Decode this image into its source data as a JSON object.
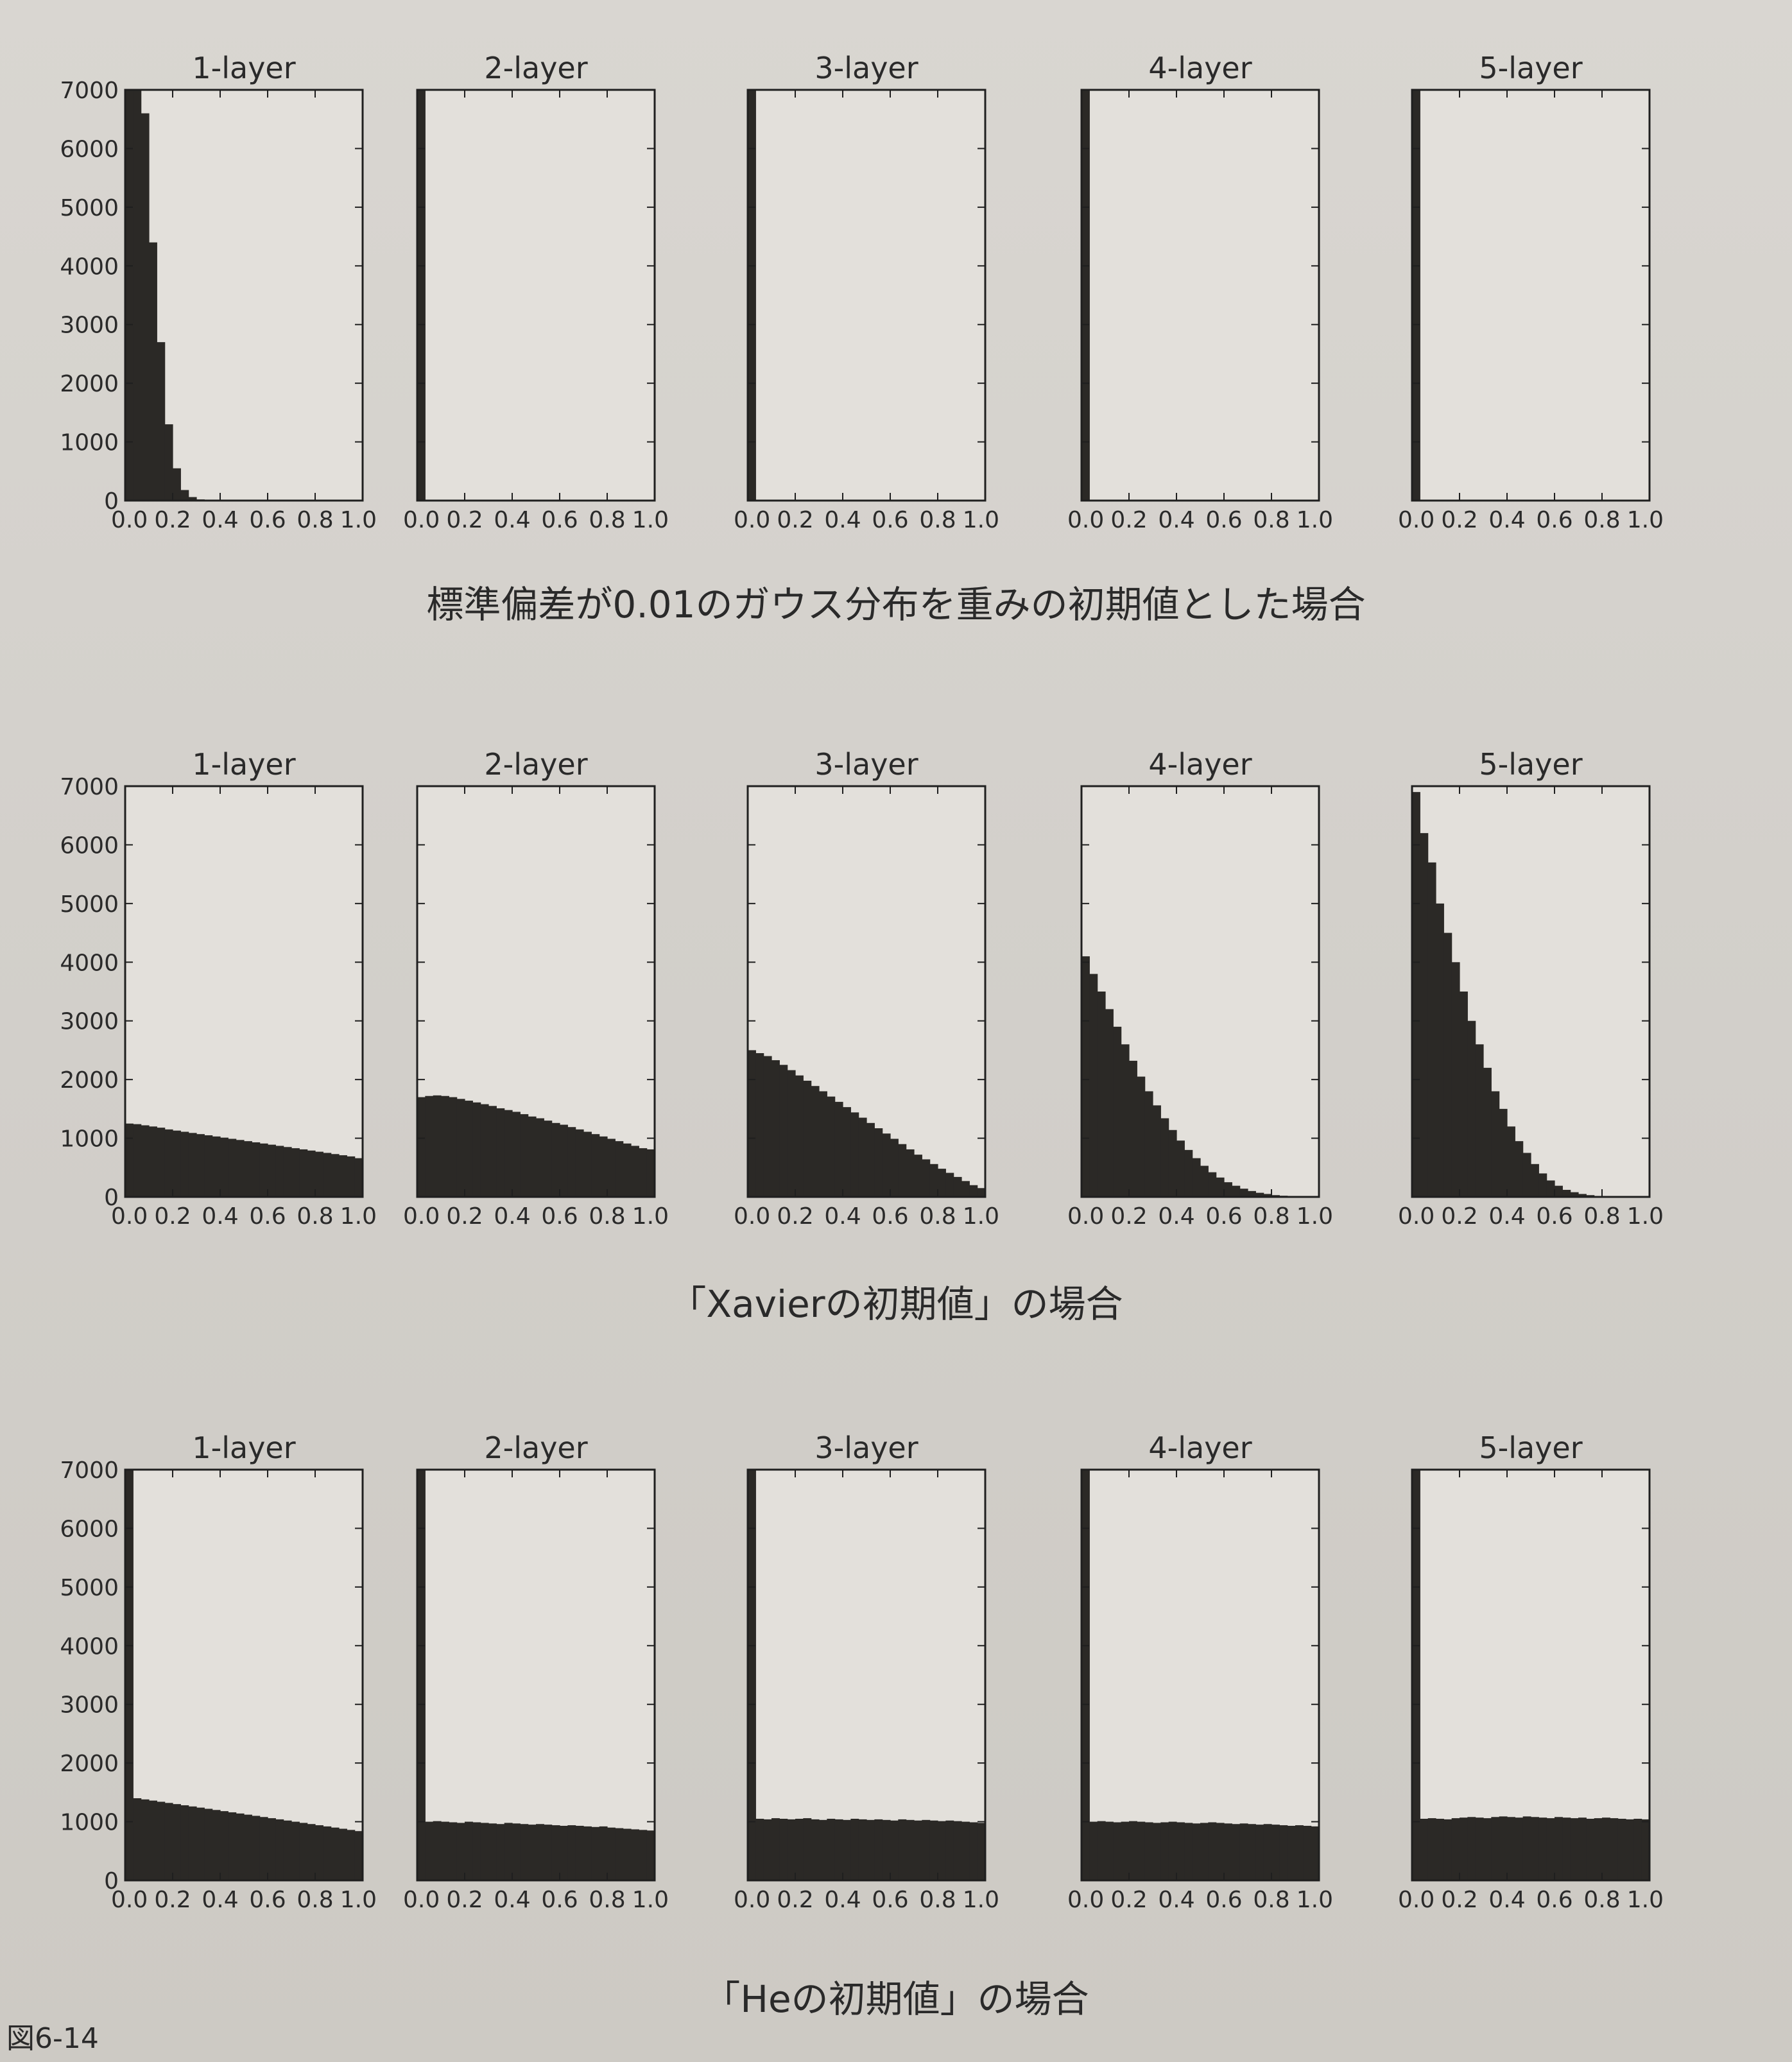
{
  "figure": {
    "number_label": "図6-14"
  },
  "chart_data": [
    {
      "row": 1,
      "type": "bar",
      "caption": "標準偏差が0.01のガウス分布を重みの初期値とした場合",
      "x_range": [
        0.0,
        1.0
      ],
      "y_range": [
        0,
        7000
      ],
      "x_ticks": [
        "0.0",
        "0.2",
        "0.4",
        "0.6",
        "0.8",
        "1.0"
      ],
      "y_ticks": [
        "0",
        "1000",
        "2000",
        "3000",
        "4000",
        "5000",
        "6000",
        "7000"
      ],
      "subplots": [
        {
          "title": "1-layer",
          "values": [
            7000,
            7000,
            6600,
            4400,
            2700,
            1300,
            550,
            180,
            60,
            20,
            0,
            0,
            0,
            0,
            0,
            0,
            0,
            0,
            0,
            0,
            0,
            0,
            0,
            0,
            0,
            0,
            0,
            0,
            0,
            0
          ]
        },
        {
          "title": "2-layer",
          "values": [
            7000,
            0,
            0,
            0,
            0,
            0,
            0,
            0,
            0,
            0,
            0,
            0,
            0,
            0,
            0,
            0,
            0,
            0,
            0,
            0,
            0,
            0,
            0,
            0,
            0,
            0,
            0,
            0,
            0,
            0
          ]
        },
        {
          "title": "3-layer",
          "values": [
            7000,
            0,
            0,
            0,
            0,
            0,
            0,
            0,
            0,
            0,
            0,
            0,
            0,
            0,
            0,
            0,
            0,
            0,
            0,
            0,
            0,
            0,
            0,
            0,
            0,
            0,
            0,
            0,
            0,
            0
          ]
        },
        {
          "title": "4-layer",
          "values": [
            7000,
            0,
            0,
            0,
            0,
            0,
            0,
            0,
            0,
            0,
            0,
            0,
            0,
            0,
            0,
            0,
            0,
            0,
            0,
            0,
            0,
            0,
            0,
            0,
            0,
            0,
            0,
            0,
            0,
            0
          ]
        },
        {
          "title": "5-layer",
          "values": [
            7000,
            0,
            0,
            0,
            0,
            0,
            0,
            0,
            0,
            0,
            0,
            0,
            0,
            0,
            0,
            0,
            0,
            0,
            0,
            0,
            0,
            0,
            0,
            0,
            0,
            0,
            0,
            0,
            0,
            0
          ]
        }
      ]
    },
    {
      "row": 2,
      "type": "bar",
      "caption": "「Xavierの初期値」の場合",
      "x_range": [
        0.0,
        1.0
      ],
      "y_range": [
        0,
        7000
      ],
      "x_ticks": [
        "0.0",
        "0.2",
        "0.4",
        "0.6",
        "0.8",
        "1.0"
      ],
      "y_ticks": [
        "0",
        "1000",
        "2000",
        "3000",
        "4000",
        "5000",
        "6000",
        "7000"
      ],
      "subplots": [
        {
          "title": "1-layer",
          "values": [
            1250,
            1240,
            1220,
            1200,
            1180,
            1150,
            1130,
            1110,
            1090,
            1070,
            1050,
            1030,
            1010,
            990,
            970,
            950,
            930,
            910,
            890,
            870,
            850,
            830,
            810,
            790,
            770,
            750,
            730,
            710,
            690,
            660
          ]
        },
        {
          "title": "2-layer",
          "values": [
            1700,
            1720,
            1730,
            1720,
            1700,
            1670,
            1640,
            1610,
            1580,
            1550,
            1510,
            1480,
            1450,
            1410,
            1370,
            1340,
            1300,
            1260,
            1230,
            1190,
            1150,
            1110,
            1070,
            1030,
            990,
            950,
            910,
            870,
            830,
            810
          ]
        },
        {
          "title": "3-layer",
          "values": [
            2500,
            2450,
            2400,
            2330,
            2250,
            2160,
            2070,
            1980,
            1890,
            1800,
            1710,
            1620,
            1530,
            1440,
            1350,
            1260,
            1170,
            1080,
            990,
            900,
            810,
            720,
            640,
            560,
            480,
            410,
            340,
            270,
            200,
            150
          ]
        },
        {
          "title": "4-layer",
          "values": [
            4100,
            3800,
            3500,
            3200,
            2900,
            2600,
            2320,
            2050,
            1800,
            1560,
            1340,
            1140,
            960,
            800,
            660,
            530,
            420,
            330,
            250,
            190,
            140,
            100,
            70,
            50,
            30,
            20,
            10,
            5,
            0,
            0
          ]
        },
        {
          "title": "5-layer",
          "values": [
            6900,
            6200,
            5700,
            5000,
            4500,
            4000,
            3500,
            3000,
            2600,
            2200,
            1800,
            1500,
            1200,
            950,
            750,
            560,
            400,
            280,
            190,
            120,
            80,
            50,
            30,
            15,
            5,
            0,
            0,
            0,
            0,
            0
          ]
        }
      ]
    },
    {
      "row": 3,
      "type": "bar",
      "caption": "「Heの初期値」の場合",
      "x_range": [
        0.0,
        1.0
      ],
      "y_range": [
        0,
        7000
      ],
      "x_ticks": [
        "0.0",
        "0.2",
        "0.4",
        "0.6",
        "0.8",
        "1.0"
      ],
      "y_ticks": [
        "0",
        "1000",
        "2000",
        "3000",
        "4000",
        "5000",
        "6000",
        "7000"
      ],
      "subplots": [
        {
          "title": "1-layer",
          "values": [
            7000,
            1400,
            1380,
            1360,
            1340,
            1320,
            1300,
            1280,
            1260,
            1240,
            1220,
            1200,
            1180,
            1160,
            1140,
            1120,
            1100,
            1080,
            1060,
            1040,
            1020,
            1000,
            980,
            960,
            940,
            920,
            900,
            880,
            860,
            840
          ]
        },
        {
          "title": "2-layer",
          "values": [
            7000,
            1000,
            1010,
            1000,
            990,
            980,
            1000,
            990,
            980,
            970,
            960,
            980,
            970,
            960,
            950,
            960,
            950,
            940,
            930,
            940,
            930,
            920,
            910,
            920,
            900,
            890,
            880,
            870,
            860,
            850
          ]
        },
        {
          "title": "3-layer",
          "values": [
            7000,
            1050,
            1040,
            1060,
            1050,
            1040,
            1050,
            1060,
            1040,
            1030,
            1050,
            1040,
            1030,
            1050,
            1040,
            1030,
            1040,
            1030,
            1020,
            1040,
            1030,
            1020,
            1030,
            1020,
            1010,
            1020,
            1010,
            1000,
            990,
            980
          ]
        },
        {
          "title": "4-layer",
          "values": [
            7000,
            1000,
            1010,
            1000,
            990,
            1000,
            1010,
            1000,
            990,
            980,
            990,
            1000,
            990,
            980,
            970,
            980,
            990,
            980,
            970,
            960,
            970,
            960,
            950,
            960,
            950,
            940,
            930,
            940,
            930,
            920
          ]
        },
        {
          "title": "5-layer",
          "values": [
            7000,
            1050,
            1060,
            1050,
            1040,
            1060,
            1070,
            1080,
            1070,
            1060,
            1080,
            1090,
            1080,
            1070,
            1090,
            1080,
            1070,
            1060,
            1080,
            1070,
            1060,
            1070,
            1050,
            1060,
            1070,
            1060,
            1050,
            1040,
            1050,
            1040
          ]
        }
      ]
    }
  ]
}
